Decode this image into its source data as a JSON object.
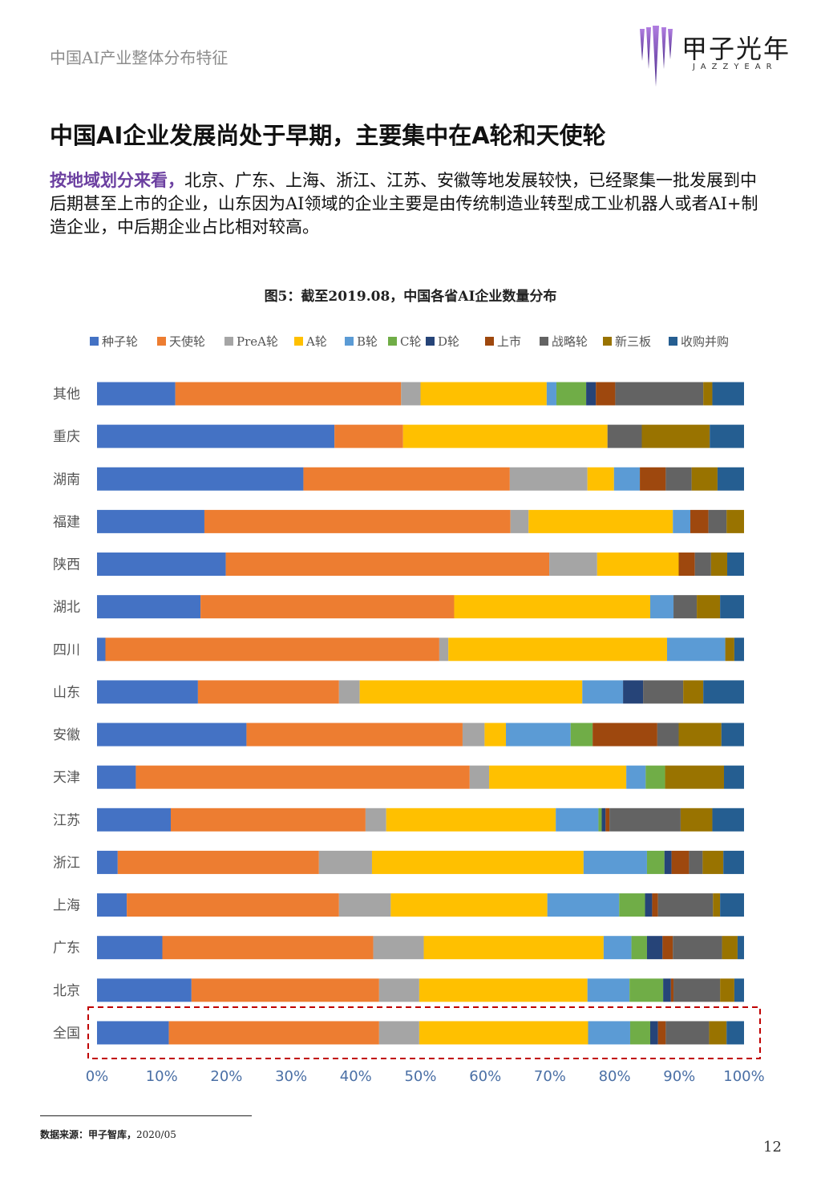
{
  "header": {
    "section_title": "中国AI产业整体分布特征"
  },
  "logo": {
    "name_cn": "甲子光年",
    "name_en": "JAZZYEAR"
  },
  "headline": "中国AI企业发展尚处于早期，主要集中在A轮和天使轮",
  "paragraph": {
    "lead": "按地域划分来看，",
    "text": "北京、广东、上海、浙江、江苏、安徽等地发展较快，已经聚集一批发展到中后期甚至上市的企业，山东因为AI领域的企业主要是由传统制造业转型成工业机器人或者AI+制造企业，中后期企业占比相对较高。"
  },
  "footnote": {
    "label": "数据来源：甲子智库，",
    "date": "2020/05"
  },
  "page_number": "12",
  "chart_data": {
    "type": "bar",
    "orientation": "horizontal",
    "stacked": "percent",
    "title": "图5：截至2019.08，中国各省AI企业数量分布",
    "xlim": [
      0,
      100
    ],
    "x_ticks": [
      "0%",
      "10%",
      "20%",
      "30%",
      "40%",
      "50%",
      "60%",
      "70%",
      "80%",
      "90%",
      "100%"
    ],
    "legend_position": "top",
    "highlight": "全国",
    "highlight_color": "#c00000",
    "categories": [
      "其他",
      "重庆",
      "湖南",
      "福建",
      "陕西",
      "湖北",
      "四川",
      "山东",
      "安徽",
      "天津",
      "江苏",
      "浙江",
      "上海",
      "广东",
      "北京",
      "全国"
    ],
    "series": [
      {
        "name": "种子轮",
        "color": "#4472c4",
        "values": [
          12.1,
          36.7,
          31.9,
          16.6,
          19.9,
          16.0,
          1.3,
          15.6,
          23.1,
          6.0,
          11.4,
          3.2,
          4.6,
          10.1,
          14.6,
          11.1
        ]
      },
      {
        "name": "天使轮",
        "color": "#ed7d31",
        "values": [
          34.9,
          10.6,
          31.9,
          47.3,
          50.0,
          39.2,
          51.6,
          21.8,
          33.4,
          51.6,
          30.1,
          31.1,
          32.8,
          32.6,
          29.0,
          32.5
        ]
      },
      {
        "name": "PreA轮",
        "color": "#a5a5a5",
        "values": [
          3.0,
          0.0,
          12.0,
          2.8,
          7.4,
          0.0,
          1.4,
          3.2,
          3.4,
          3.0,
          3.2,
          8.2,
          8.0,
          7.8,
          6.2,
          6.2
        ]
      },
      {
        "name": "A轮",
        "color": "#ffc000",
        "values": [
          19.5,
          31.6,
          4.1,
          22.3,
          12.6,
          30.3,
          33.8,
          34.4,
          3.3,
          21.2,
          26.2,
          32.7,
          24.2,
          27.8,
          26.0,
          26.1
        ]
      },
      {
        "name": "B轮",
        "color": "#5b9bd5",
        "values": [
          1.5,
          0.0,
          4.0,
          2.7,
          0.0,
          3.6,
          9.0,
          6.3,
          10.0,
          3.0,
          6.6,
          9.8,
          11.1,
          4.3,
          6.5,
          6.5
        ]
      },
      {
        "name": "C轮",
        "color": "#70ad47",
        "values": [
          4.6,
          0.0,
          0.0,
          0.0,
          0.0,
          0.0,
          0.0,
          0.0,
          3.4,
          3.0,
          0.5,
          2.7,
          4.0,
          2.4,
          5.2,
          3.1
        ]
      },
      {
        "name": "D轮",
        "color": "#264478",
        "values": [
          1.5,
          0.0,
          0.0,
          0.0,
          0.0,
          0.0,
          0.0,
          3.1,
          0.0,
          0.0,
          0.6,
          1.1,
          1.1,
          2.4,
          1.2,
          1.2
        ]
      },
      {
        "name": "上市",
        "color": "#9e480e",
        "values": [
          3.0,
          0.0,
          4.0,
          2.8,
          2.5,
          0.0,
          0.0,
          0.0,
          10.0,
          0.0,
          0.6,
          2.7,
          0.9,
          1.6,
          0.4,
          1.2
        ]
      },
      {
        "name": "战略轮",
        "color": "#636363",
        "values": [
          13.6,
          5.3,
          4.0,
          2.8,
          2.5,
          3.6,
          0.0,
          6.2,
          3.3,
          0.0,
          11.0,
          2.1,
          8.5,
          7.6,
          7.2,
          6.7
        ]
      },
      {
        "name": "新三板",
        "color": "#997300",
        "values": [
          1.4,
          10.5,
          4.0,
          2.7,
          2.5,
          3.6,
          1.4,
          3.1,
          6.6,
          9.1,
          4.9,
          3.2,
          1.1,
          2.4,
          2.2,
          2.7
        ]
      },
      {
        "name": "收购并购",
        "color": "#255e91",
        "values": [
          4.9,
          5.3,
          4.1,
          0.0,
          2.6,
          3.7,
          1.5,
          6.3,
          3.5,
          3.1,
          4.9,
          3.2,
          3.7,
          1.0,
          1.5,
          2.7
        ]
      }
    ]
  }
}
